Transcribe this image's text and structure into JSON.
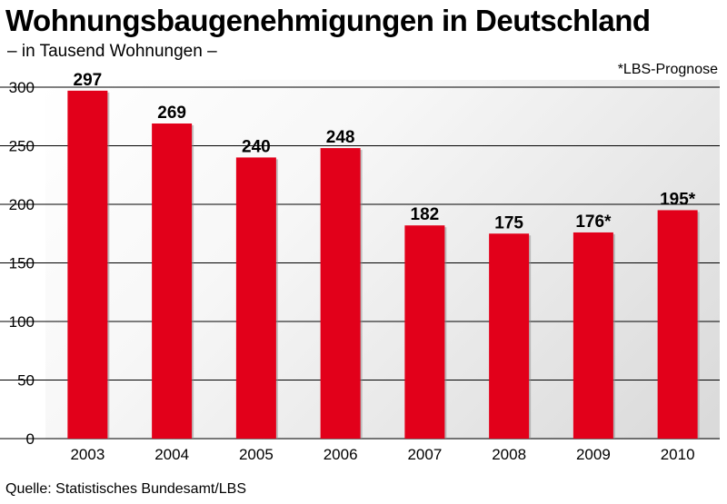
{
  "header": {
    "title": "Wohnungsbaugenehmigungen in Deutschland",
    "subtitle": "– in Tausend Wohnungen –",
    "note": "*LBS-Prognose"
  },
  "footer": {
    "source": "Quelle: Statistisches Bundesamt/LBS"
  },
  "colors": {
    "bar": "#e2001a",
    "text": "#000000"
  },
  "chart_data": {
    "type": "bar",
    "categories": [
      "2003",
      "2004",
      "2005",
      "2006",
      "2007",
      "2008",
      "2009",
      "2010"
    ],
    "values": [
      297,
      269,
      240,
      248,
      182,
      175,
      176,
      195
    ],
    "data_labels": [
      "297",
      "269",
      "240",
      "248",
      "182",
      "175",
      "176*",
      "195*"
    ],
    "ylim": [
      0,
      300
    ],
    "yticks": [
      0,
      50,
      100,
      150,
      200,
      250,
      300
    ],
    "grid": true
  }
}
